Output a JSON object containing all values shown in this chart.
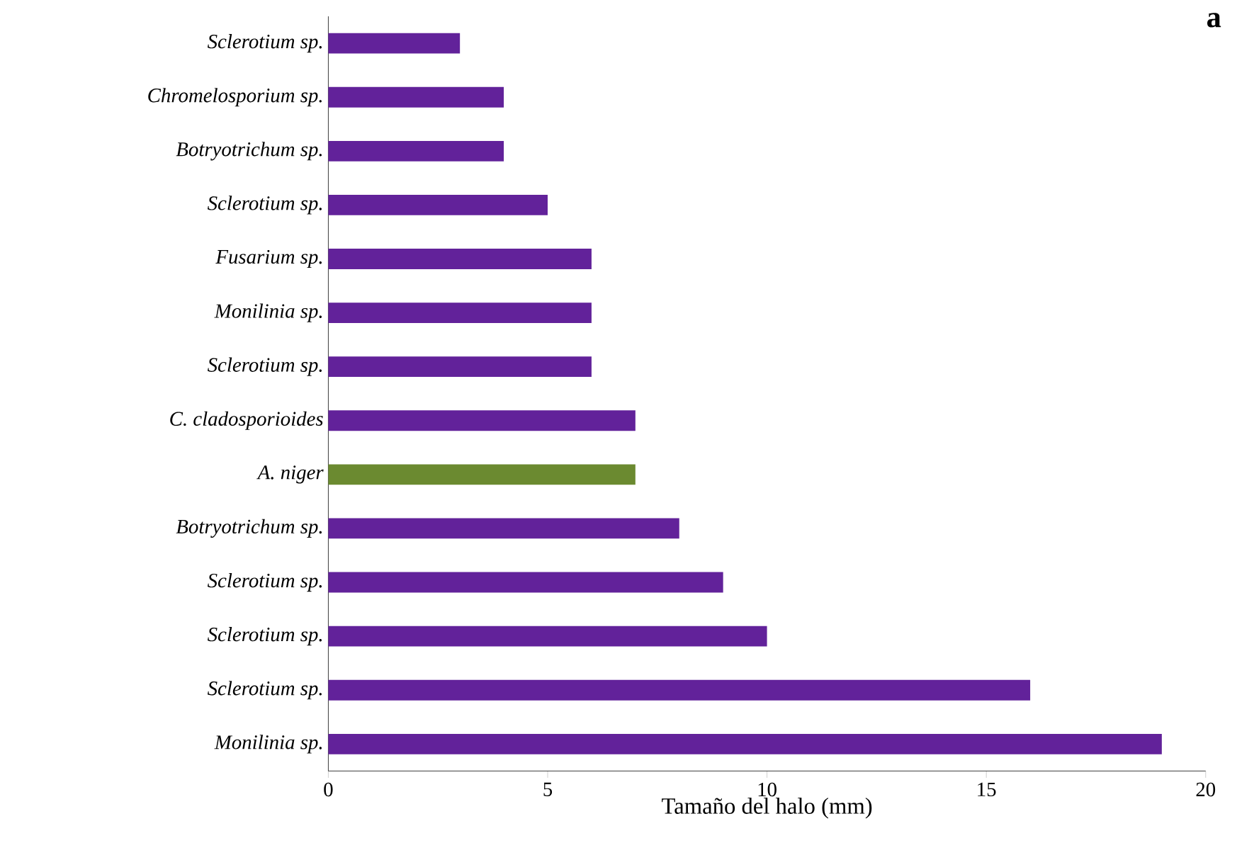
{
  "chart_data": {
    "type": "bar",
    "orientation": "horizontal",
    "title": "a",
    "xlabel": "Tamaño del halo (mm)",
    "categories": [
      "Sclerotium sp.",
      "Chromelosporium sp.",
      "Botryotrichum sp.",
      "Sclerotium sp.",
      "Fusarium sp.",
      "Monilinia sp.",
      "Sclerotium sp.",
      "C. cladosporioides",
      "A. niger",
      "Botryotrichum sp.",
      "Sclerotium sp.",
      "Sclerotium sp.",
      "Sclerotium sp.",
      "Monilinia sp."
    ],
    "values": [
      3,
      4,
      4,
      5,
      6,
      6,
      6,
      7,
      7,
      8,
      9,
      10,
      16,
      19
    ],
    "colors": [
      "#62229a",
      "#62229a",
      "#62229a",
      "#62229a",
      "#62229a",
      "#62229a",
      "#62229a",
      "#62229a",
      "#6b8a30",
      "#62229a",
      "#62229a",
      "#62229a",
      "#62229a",
      "#62229a"
    ],
    "xlim": [
      0,
      20
    ],
    "xticks": [
      0,
      5,
      10,
      15,
      20
    ],
    "grid": false
  }
}
